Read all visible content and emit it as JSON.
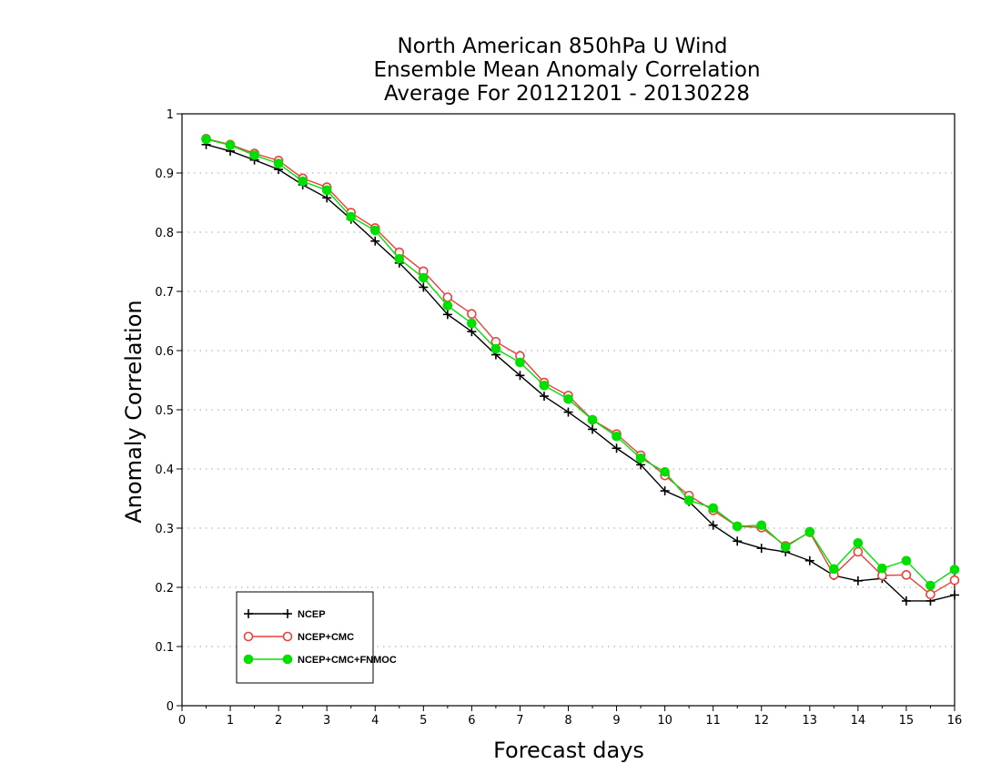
{
  "chart_data": {
    "type": "line",
    "title_lines": [
      "North American 850hPa U Wind",
      "Ensemble Mean Anomaly Correlation",
      "Average For 20121201 - 20130228"
    ],
    "xlabel": "Forecast days",
    "ylabel": "Anomaly Correlation",
    "xlim": [
      0,
      16
    ],
    "ylim": [
      0,
      1
    ],
    "x_ticks": [
      "0",
      "1",
      "2",
      "3",
      "4",
      "5",
      "6",
      "7",
      "8",
      "9",
      "10",
      "11",
      "12",
      "13",
      "14",
      "15",
      "16"
    ],
    "y_ticks": [
      "0",
      "0.1",
      "0.2",
      "0.3",
      "0.4",
      "0.5",
      "0.6",
      "0.7",
      "0.8",
      "0.9",
      "1"
    ],
    "grid": "horizontal dotted",
    "legend_position": "bottom-left",
    "x": [
      0.5,
      1,
      1.5,
      2,
      2.5,
      3,
      3.5,
      4,
      4.5,
      5,
      5.5,
      6,
      6.5,
      7,
      7.5,
      8,
      8.5,
      9,
      9.5,
      10,
      10.5,
      11,
      11.5,
      12,
      12.5,
      13,
      13.5,
      14,
      14.5,
      15,
      15.5,
      16
    ],
    "series": [
      {
        "name": "NCEP",
        "color": "#000000",
        "marker": "plus",
        "values": [
          0.948,
          0.937,
          0.922,
          0.906,
          0.88,
          0.858,
          0.822,
          0.785,
          0.748,
          0.707,
          0.661,
          0.632,
          0.593,
          0.558,
          0.523,
          0.496,
          0.467,
          0.435,
          0.407,
          0.363,
          0.345,
          0.305,
          0.278,
          0.266,
          0.26,
          0.245,
          0.22,
          0.211,
          0.215,
          0.177,
          0.177,
          0.187
        ]
      },
      {
        "name": "NCEP+CMC",
        "color": "#e8413c",
        "marker": "open-circle",
        "values": [
          0.958,
          0.948,
          0.933,
          0.921,
          0.891,
          0.876,
          0.833,
          0.807,
          0.766,
          0.734,
          0.69,
          0.662,
          0.615,
          0.591,
          0.546,
          0.524,
          0.483,
          0.459,
          0.423,
          0.389,
          0.355,
          0.33,
          0.303,
          0.301,
          0.27,
          0.293,
          0.221,
          0.26,
          0.22,
          0.221,
          0.188,
          0.212
        ]
      },
      {
        "name": "NCEP+CMC+FNMOC",
        "color": "#00e000",
        "marker": "filled-circle",
        "values": [
          0.957,
          0.947,
          0.93,
          0.916,
          0.886,
          0.871,
          0.826,
          0.803,
          0.755,
          0.723,
          0.676,
          0.646,
          0.603,
          0.58,
          0.541,
          0.518,
          0.483,
          0.455,
          0.418,
          0.395,
          0.347,
          0.334,
          0.303,
          0.305,
          0.268,
          0.294,
          0.231,
          0.275,
          0.232,
          0.245,
          0.203,
          0.23
        ]
      }
    ]
  }
}
